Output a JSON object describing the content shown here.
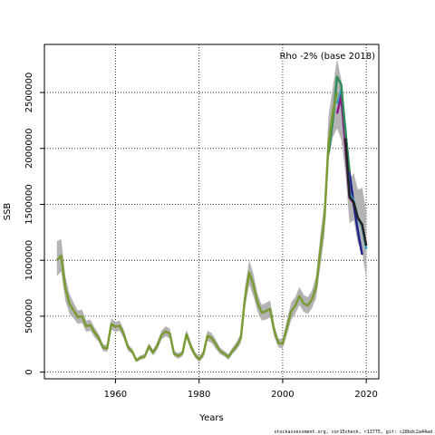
{
  "chart_data": {
    "type": "line",
    "xlabel": "Years",
    "ylabel": "SSB",
    "xlim": [
      1943,
      2023
    ],
    "ylim": [
      -60000,
      2930000
    ],
    "xticks": [
      1960,
      1980,
      2000,
      2020
    ],
    "yticks": [
      0,
      500000,
      1000000,
      1500000,
      2000000,
      2500000
    ],
    "grid": "dotted",
    "annotation": "Rho -2% (base 2018)",
    "footer": "stockassessment.org, cor15check, r13775, git: c28bdc2a44ad",
    "band": {
      "x": [
        1946,
        1947,
        1948,
        1949,
        1950,
        1951,
        1952,
        1953,
        1954,
        1955,
        1956,
        1957,
        1958,
        1959,
        1960,
        1961,
        1962,
        1963,
        1964,
        1965,
        1966,
        1967,
        1968,
        1969,
        1970,
        1971,
        1972,
        1973,
        1974,
        1975,
        1976,
        1977,
        1978,
        1979,
        1980,
        1981,
        1982,
        1983,
        1984,
        1985,
        1986,
        1987,
        1988,
        1989,
        1990,
        1991,
        1992,
        1993,
        1994,
        1995,
        1996,
        1997,
        1998,
        1999,
        2000,
        2001,
        2002,
        2003,
        2004,
        2005,
        2006,
        2007,
        2008,
        2009,
        2010,
        2011,
        2012,
        2013,
        2014,
        2015,
        2016,
        2017,
        2018,
        2019,
        2020
      ],
      "lower": [
        860000,
        900000,
        640000,
        520000,
        480000,
        430000,
        440000,
        360000,
        370000,
        310000,
        270000,
        190000,
        180000,
        380000,
        360000,
        370000,
        300000,
        190000,
        160000,
        90000,
        110000,
        120000,
        200000,
        150000,
        200000,
        290000,
        320000,
        300000,
        140000,
        120000,
        140000,
        300000,
        200000,
        130000,
        90000,
        130000,
        280000,
        260000,
        210000,
        160000,
        140000,
        110000,
        160000,
        200000,
        260000,
        580000,
        780000,
        680000,
        540000,
        460000,
        470000,
        490000,
        310000,
        220000,
        210000,
        330000,
        460000,
        520000,
        600000,
        540000,
        520000,
        570000,
        660000,
        940000,
        1220000,
        1900000,
        2100000,
        2180000,
        2080000,
        1790000,
        1330000,
        1360000,
        1150000,
        1080000,
        830000
      ],
      "upper": [
        1170000,
        1190000,
        860000,
        700000,
        620000,
        550000,
        560000,
        460000,
        470000,
        400000,
        340000,
        250000,
        240000,
        480000,
        450000,
        460000,
        380000,
        250000,
        210000,
        120000,
        150000,
        160000,
        260000,
        200000,
        270000,
        370000,
        410000,
        390000,
        190000,
        170000,
        190000,
        380000,
        270000,
        180000,
        140000,
        190000,
        370000,
        350000,
        290000,
        220000,
        190000,
        160000,
        220000,
        270000,
        350000,
        760000,
        1000000,
        880000,
        700000,
        600000,
        620000,
        640000,
        420000,
        300000,
        300000,
        460000,
        620000,
        670000,
        760000,
        690000,
        670000,
        730000,
        860000,
        1220000,
        1520000,
        2300000,
        2550000,
        2800000,
        2620000,
        2200000,
        1720000,
        1780000,
        1630000,
        1650000,
        1440000
      ]
    },
    "series": [
      {
        "color": "#1f1f8f",
        "x": [
          2014,
          2015,
          2016,
          2017,
          2018,
          2019
        ],
        "values": [
          2430000,
          2160000,
          1780000,
          1500000,
          1260000,
          1050000
        ]
      },
      {
        "color": "#33a3c0",
        "x": [
          2013,
          2014,
          2015,
          2016,
          2017,
          2018,
          2019,
          2020
        ],
        "values": [
          2400000,
          2520000,
          2180000,
          1600000,
          1530000,
          1380000,
          1300000,
          1100000
        ]
      },
      {
        "color": "#8b1a8b",
        "x": [
          2013,
          2014,
          2015,
          2016,
          2017
        ],
        "values": [
          2310000,
          2470000,
          2020000,
          1560000,
          1510000
        ]
      },
      {
        "color": "#2e8b57",
        "x": [
          2011,
          2012,
          2013,
          2014,
          2015,
          2016
        ],
        "values": [
          1960000,
          2250000,
          2640000,
          2570000,
          2150000,
          1790000
        ]
      },
      {
        "color": "#222222",
        "x": [
          2015,
          2016,
          2017,
          2018,
          2019,
          2020
        ],
        "values": [
          2090000,
          1570000,
          1520000,
          1380000,
          1320000,
          1130000
        ]
      },
      {
        "color": "#7a9a33",
        "x": [
          1946,
          1947,
          1948,
          1949,
          1950,
          1951,
          1952,
          1953,
          1954,
          1955,
          1956,
          1957,
          1958,
          1959,
          1960,
          1961,
          1962,
          1963,
          1964,
          1965,
          1966,
          1967,
          1968,
          1969,
          1970,
          1971,
          1972,
          1973,
          1974,
          1975,
          1976,
          1977,
          1978,
          1979,
          1980,
          1981,
          1982,
          1983,
          1984,
          1985,
          1986,
          1987,
          1988,
          1989,
          1990,
          1991,
          1992,
          1993,
          1994,
          1995,
          1996,
          1997,
          1998,
          1999,
          2000,
          2001,
          2002,
          2003,
          2004,
          2005,
          2006,
          2007,
          2008,
          2009,
          2010,
          2011,
          2012,
          2013
        ],
        "values": [
          1000000,
          1040000,
          750000,
          610000,
          550000,
          490000,
          500000,
          410000,
          420000,
          355000,
          305000,
          220000,
          210000,
          430000,
          405000,
          415000,
          340000,
          220000,
          185000,
          105000,
          130000,
          140000,
          230000,
          175000,
          235000,
          330000,
          365000,
          345000,
          165000,
          145000,
          165000,
          340000,
          235000,
          155000,
          115000,
          160000,
          325000,
          305000,
          250000,
          190000,
          165000,
          135000,
          190000,
          235000,
          305000,
          670000,
          890000,
          780000,
          620000,
          530000,
          545000,
          565000,
          365000,
          260000,
          255000,
          395000,
          540000,
          595000,
          680000,
          615000,
          595000,
          650000,
          760000,
          1080000,
          1370000,
          2050000,
          2330000,
          2500000
        ]
      }
    ]
  }
}
